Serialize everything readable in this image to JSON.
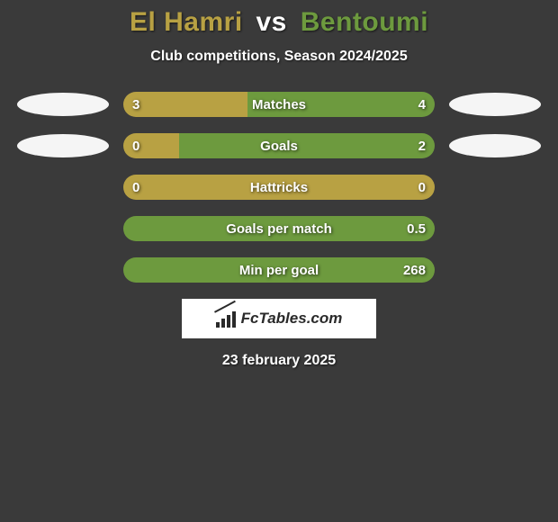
{
  "background_color": "#3a3a3a",
  "title": {
    "player1": "El Hamri",
    "vs": "vs",
    "player2": "Bentoumi",
    "player1_color": "#b8a143",
    "player2_color": "#6d9a3e"
  },
  "subtitle": "Club competitions, Season 2024/2025",
  "bar_colors": {
    "left": "#b8a143",
    "right": "#6d9a3e"
  },
  "stats": [
    {
      "label": "Matches",
      "left_value": "3",
      "right_value": "4",
      "left_pct": 40,
      "right_pct": 60,
      "show_ellipses": true
    },
    {
      "label": "Goals",
      "left_value": "0",
      "right_value": "2",
      "left_pct": 18,
      "right_pct": 82,
      "show_ellipses": true
    },
    {
      "label": "Hattricks",
      "left_value": "0",
      "right_value": "0",
      "left_pct": 100,
      "right_pct": 0,
      "show_ellipses": false
    },
    {
      "label": "Goals per match",
      "left_value": "",
      "right_value": "0.5",
      "left_pct": 0,
      "right_pct": 100,
      "show_ellipses": false
    },
    {
      "label": "Min per goal",
      "left_value": "",
      "right_value": "268",
      "left_pct": 0,
      "right_pct": 100,
      "show_ellipses": false
    }
  ],
  "logo_text": "FcTables.com",
  "date": "23 february 2025"
}
